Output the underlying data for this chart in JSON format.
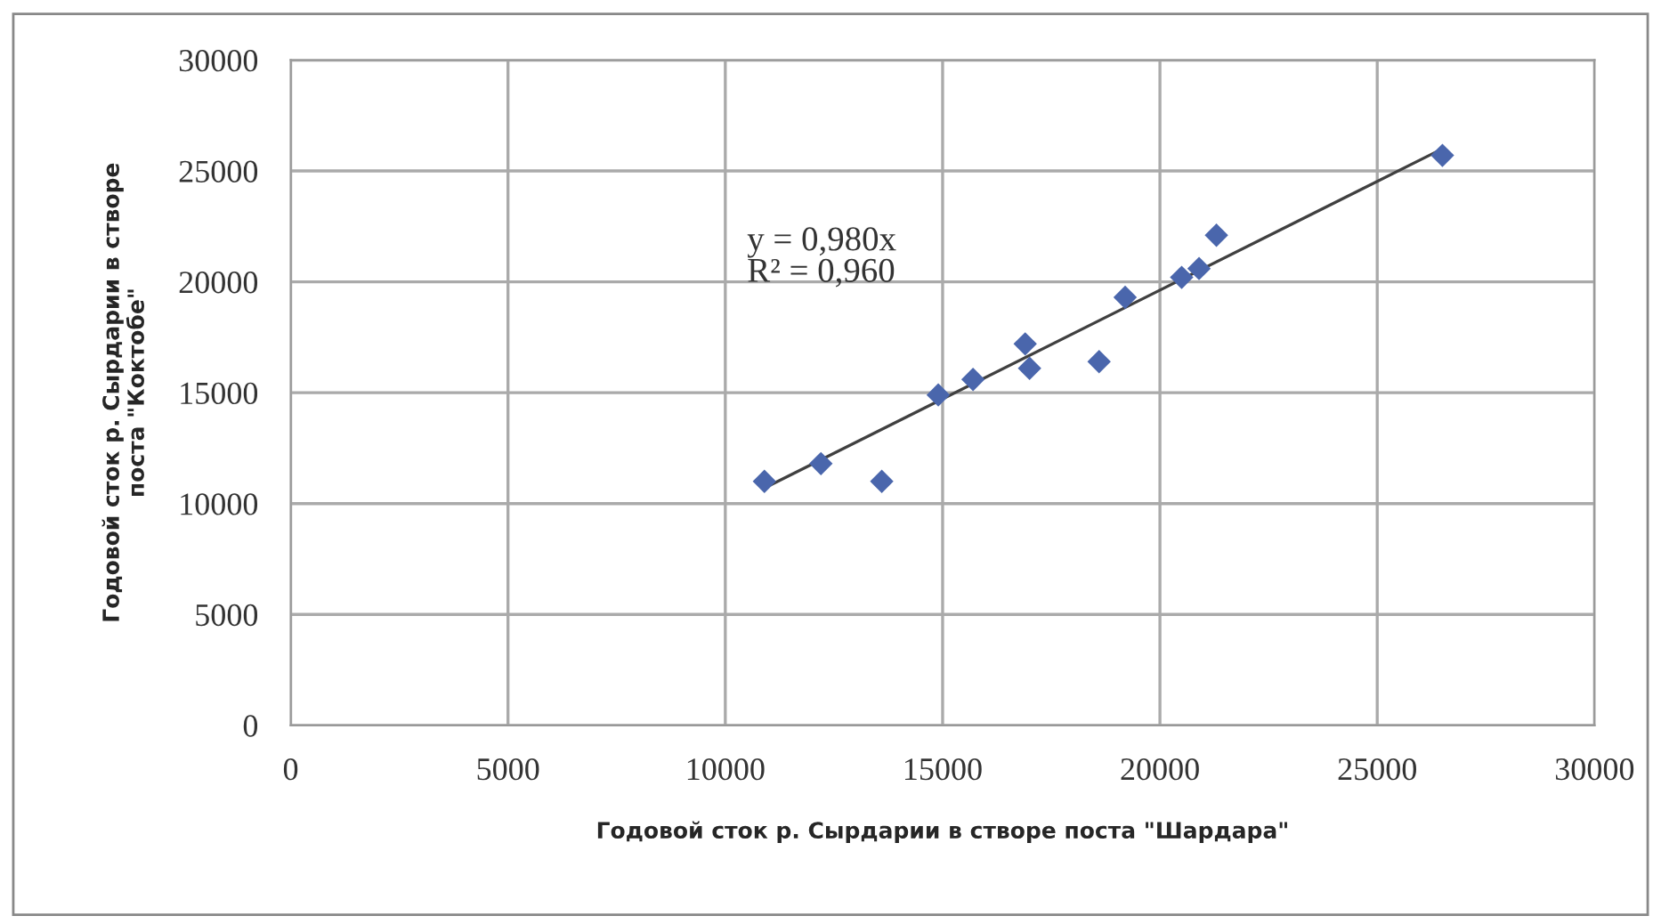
{
  "chart_data": {
    "type": "scatter",
    "xlabel": "Годовой сток р. Сырдарии в створе поста \"Шардара\"",
    "ylabel": "Годовой сток р. Сырдарии в створе\nпоста \"Коктобе\"",
    "xlim": [
      0,
      30000
    ],
    "ylim": [
      0,
      30000
    ],
    "xticks": [
      0,
      5000,
      10000,
      15000,
      20000,
      25000,
      30000
    ],
    "yticks": [
      0,
      5000,
      10000,
      15000,
      20000,
      25000,
      30000
    ],
    "grid": true,
    "marker": "diamond",
    "series": [
      {
        "color": "#4a66ac",
        "x": [
          10900,
          12200,
          13600,
          14900,
          15700,
          16900,
          17000,
          18600,
          19200,
          20500,
          20900,
          21300,
          26500
        ],
        "values": [
          11000,
          11800,
          11000,
          14900,
          15600,
          17200,
          16100,
          16400,
          19300,
          20200,
          20600,
          22100,
          25700
        ]
      },
      {
        "type": "line",
        "color": "#404040",
        "marker": "none",
        "x": [
          10900,
          26500
        ],
        "values": [
          10700,
          26000
        ]
      }
    ],
    "annotations": [
      "y = 0,980x\nR² = 0,960"
    ]
  }
}
